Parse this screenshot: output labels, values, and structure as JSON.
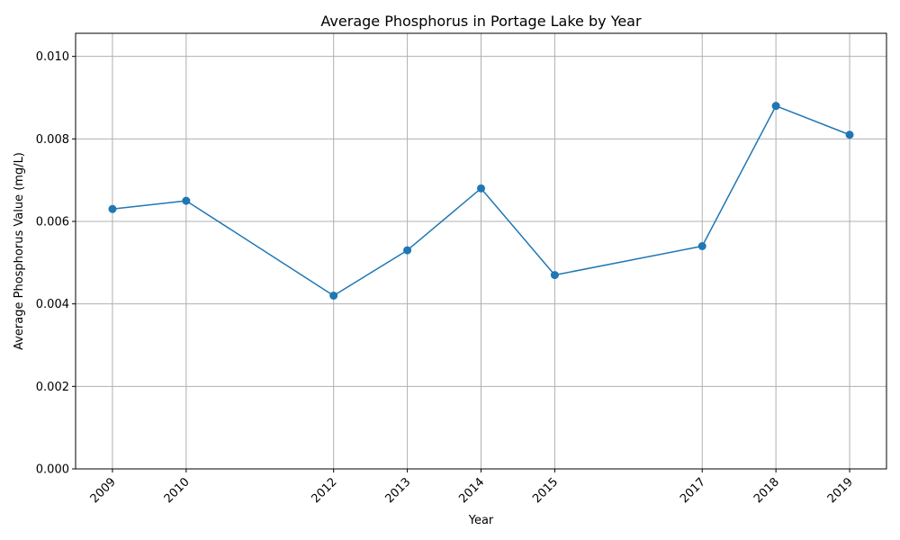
{
  "chart_data": {
    "type": "line",
    "title": "Average Phosphorus in Portage Lake by Year",
    "xlabel": "Year",
    "ylabel": "Average Phosphorus Value (mg/L)",
    "x": [
      2009,
      2010,
      2012,
      2013,
      2014,
      2015,
      2017,
      2018,
      2019
    ],
    "series": [
      {
        "values": [
          0.0063,
          0.0065,
          0.0042,
          0.0053,
          0.0068,
          0.0047,
          0.0054,
          0.0088,
          0.0081
        ],
        "color": "#1f77b4"
      }
    ],
    "xticks": [
      "2009",
      "2010",
      "2012",
      "2013",
      "2014",
      "2015",
      "2017",
      "2018",
      "2019"
    ],
    "yticks": [
      "0.000",
      "0.002",
      "0.004",
      "0.006",
      "0.008",
      "0.010"
    ],
    "ylim": [
      0,
      0.01056
    ],
    "xlim": [
      2008.5,
      2019.5
    ],
    "grid": true,
    "markers": true
  }
}
